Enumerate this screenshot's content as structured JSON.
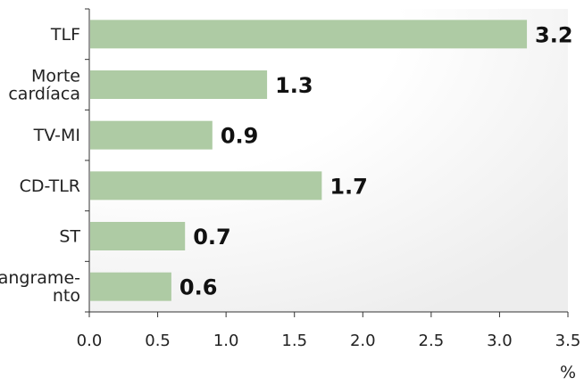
{
  "chart_data": {
    "type": "bar",
    "orientation": "horizontal",
    "categories": [
      [
        "TLF"
      ],
      [
        "Morte",
        "cardíaca"
      ],
      [
        "TV-MI"
      ],
      [
        "CD-TLR"
      ],
      [
        "ST"
      ],
      [
        "Sangrame-",
        "nto"
      ]
    ],
    "values": [
      3.2,
      1.3,
      0.9,
      1.7,
      0.7,
      0.6
    ],
    "data_labels": [
      "3.2",
      "1.3",
      "0.9",
      "1.7",
      "0.7",
      "0.6"
    ],
    "xticks": [
      "0.0",
      "0.5",
      "1.0",
      "1.5",
      "2.0",
      "2.5",
      "3.0",
      "3.5"
    ],
    "xlim": [
      0,
      3.5
    ],
    "xunit": "%",
    "grid": false,
    "colors": {
      "bar": "#aecba4",
      "axis": "#333333",
      "background_gradient": [
        "#ffffff",
        "#ededed"
      ]
    }
  }
}
